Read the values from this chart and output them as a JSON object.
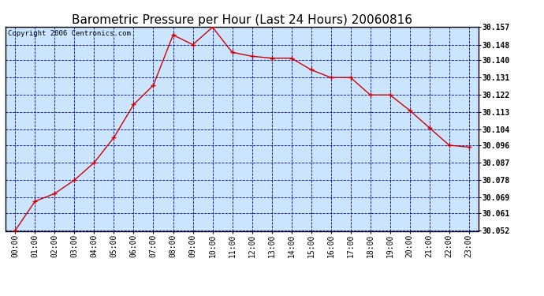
{
  "title": "Barometric Pressure per Hour (Last 24 Hours) 20060816",
  "copyright": "Copyright 2006 Centronics.com",
  "x_labels": [
    "00:00",
    "01:00",
    "02:00",
    "03:00",
    "04:00",
    "05:00",
    "06:00",
    "07:00",
    "08:00",
    "09:00",
    "10:00",
    "11:00",
    "12:00",
    "13:00",
    "14:00",
    "15:00",
    "16:00",
    "17:00",
    "18:00",
    "19:00",
    "20:00",
    "21:00",
    "22:00",
    "23:00"
  ],
  "y_values": [
    30.052,
    30.067,
    30.071,
    30.078,
    30.087,
    30.1,
    30.117,
    30.127,
    30.153,
    30.148,
    30.157,
    30.144,
    30.142,
    30.141,
    30.141,
    30.135,
    30.131,
    30.131,
    30.122,
    30.122,
    30.114,
    30.105,
    30.096,
    30.095
  ],
  "ylim_min": 30.052,
  "ylim_max": 30.157,
  "yticks": [
    30.052,
    30.061,
    30.069,
    30.078,
    30.087,
    30.096,
    30.104,
    30.113,
    30.122,
    30.131,
    30.14,
    30.148,
    30.157
  ],
  "ytick_labels": [
    "30.052",
    "30.061",
    "30.069",
    "30.078",
    "30.087",
    "30.096",
    "30.104",
    "30.113",
    "30.122",
    "30.131",
    "30.140",
    "30.148",
    "30.157"
  ],
  "line_color": "#cc0000",
  "marker_color": "#cc0000",
  "background_color": "#cce5ff",
  "grid_color": "#0000bb",
  "title_fontsize": 11,
  "copyright_fontsize": 6.5,
  "tick_fontsize": 7,
  "fig_bg": "#ffffff"
}
